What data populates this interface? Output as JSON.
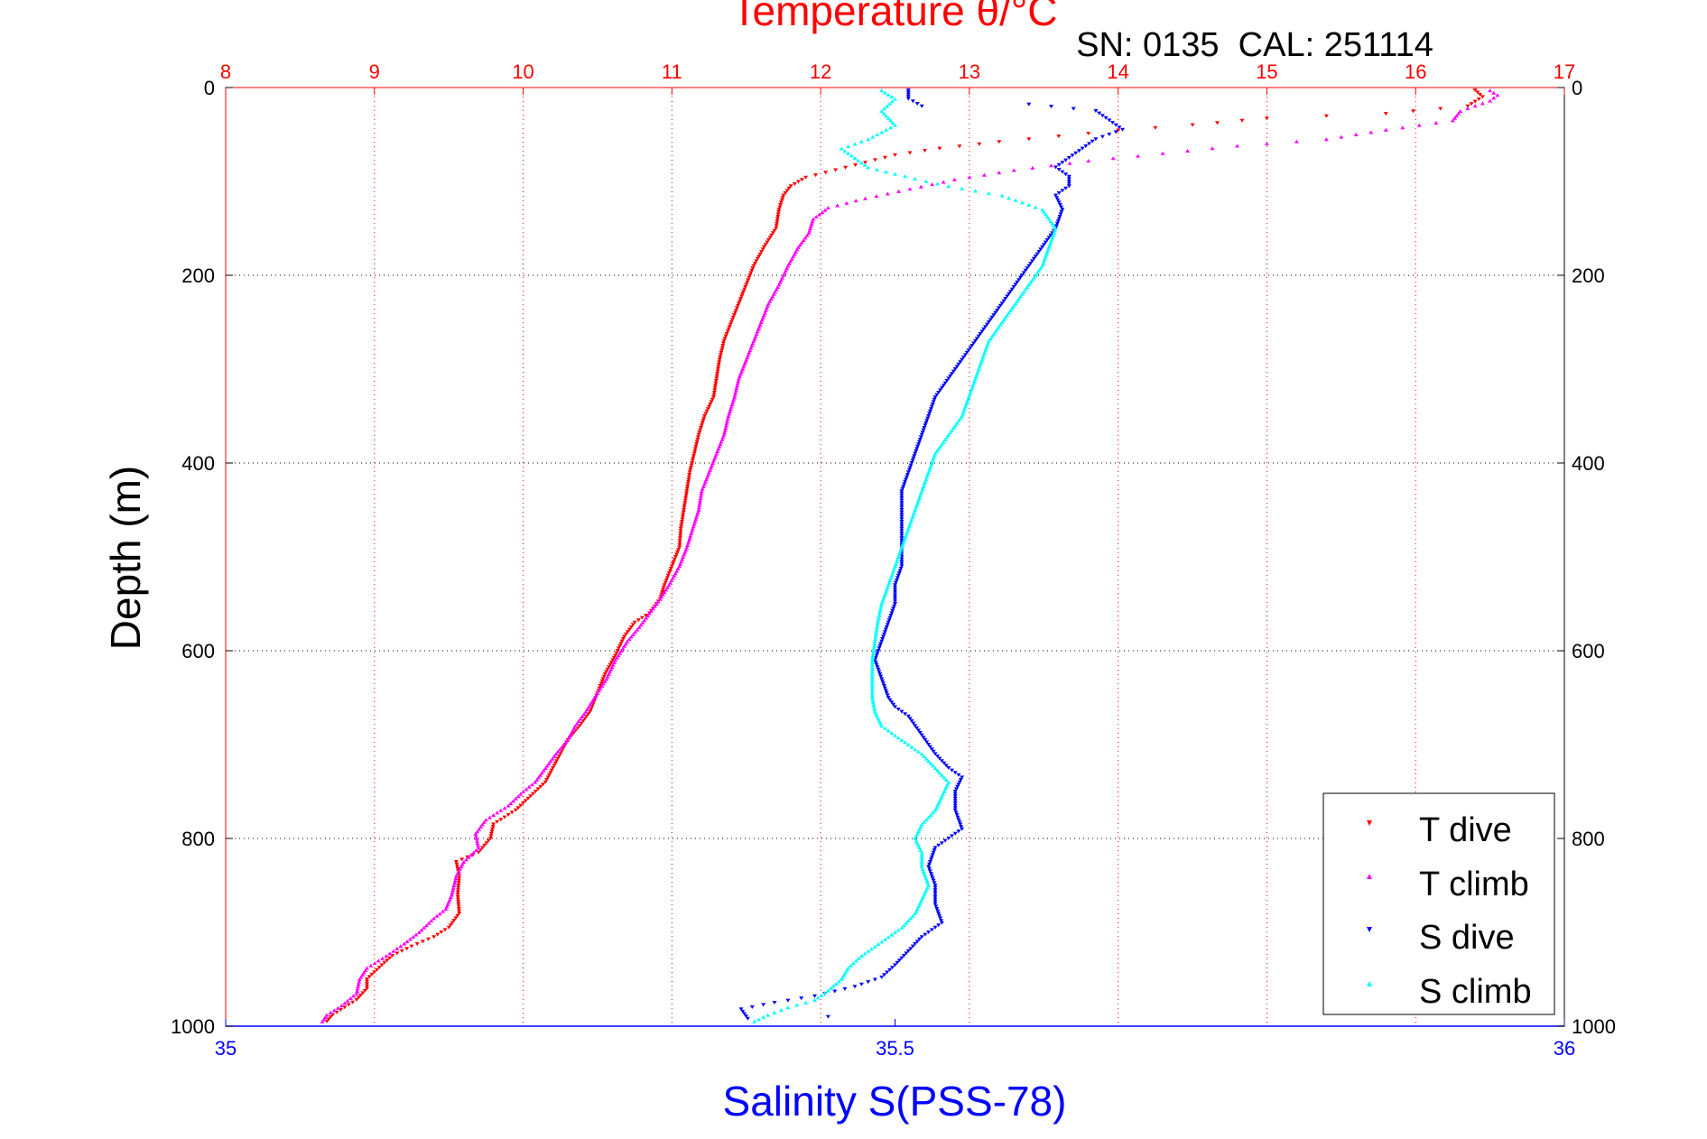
{
  "chart_data": {
    "type": "scatter",
    "top_axis": {
      "label": "Temperature θ/°C",
      "range": [
        8,
        17
      ],
      "ticks": [
        "8",
        "9",
        "10",
        "11",
        "12",
        "13",
        "14",
        "15",
        "16",
        "17"
      ],
      "color": "#ff0000"
    },
    "bottom_axis": {
      "label": "Salinity S(PSS-78)",
      "range": [
        35,
        36
      ],
      "ticks": [
        "35",
        "35.5",
        "36"
      ],
      "color": "#0000ff"
    },
    "y_axis": {
      "label": "Depth (m)",
      "range": [
        0,
        1000
      ],
      "reversed": true,
      "ticks": [
        "0",
        "200",
        "400",
        "600",
        "800",
        "1000"
      ]
    },
    "subtitle": "SN: 0135  CAL: 251114",
    "grid": true,
    "legend": {
      "placement": "bottom-right",
      "entries": [
        "T dive",
        "T climb",
        "S dive",
        "S climb"
      ]
    },
    "series": [
      {
        "name": "T dive",
        "axis": "temperature",
        "color": "#ff0000",
        "marker": "triangle-down",
        "points": [
          [
            16.4,
            3
          ],
          [
            16.45,
            10
          ],
          [
            16.35,
            20
          ],
          [
            15.8,
            28
          ],
          [
            15.0,
            33
          ],
          [
            14.5,
            40
          ],
          [
            14.0,
            46
          ],
          [
            13.6,
            52
          ],
          [
            13.2,
            58
          ],
          [
            12.8,
            65
          ],
          [
            12.5,
            72
          ],
          [
            12.3,
            80
          ],
          [
            12.1,
            88
          ],
          [
            11.9,
            96
          ],
          [
            11.8,
            105
          ],
          [
            11.75,
            115
          ],
          [
            11.72,
            130
          ],
          [
            11.7,
            150
          ],
          [
            11.62,
            170
          ],
          [
            11.55,
            190
          ],
          [
            11.5,
            210
          ],
          [
            11.45,
            230
          ],
          [
            11.4,
            250
          ],
          [
            11.35,
            270
          ],
          [
            11.32,
            290
          ],
          [
            11.3,
            310
          ],
          [
            11.28,
            330
          ],
          [
            11.22,
            350
          ],
          [
            11.18,
            370
          ],
          [
            11.15,
            390
          ],
          [
            11.12,
            410
          ],
          [
            11.1,
            430
          ],
          [
            11.08,
            450
          ],
          [
            11.06,
            470
          ],
          [
            11.05,
            490
          ],
          [
            11.0,
            510
          ],
          [
            10.95,
            530
          ],
          [
            10.92,
            545
          ],
          [
            10.85,
            560
          ],
          [
            10.75,
            570
          ],
          [
            10.68,
            585
          ],
          [
            10.62,
            605
          ],
          [
            10.55,
            625
          ],
          [
            10.5,
            645
          ],
          [
            10.45,
            665
          ],
          [
            10.38,
            680
          ],
          [
            10.3,
            695
          ],
          [
            10.25,
            710
          ],
          [
            10.2,
            725
          ],
          [
            10.15,
            740
          ],
          [
            10.05,
            755
          ],
          [
            9.95,
            770
          ],
          [
            9.8,
            785
          ],
          [
            9.78,
            800
          ],
          [
            9.7,
            815
          ],
          [
            9.55,
            825
          ],
          [
            9.57,
            840
          ],
          [
            9.56,
            860
          ],
          [
            9.57,
            880
          ],
          [
            9.5,
            895
          ],
          [
            9.4,
            905
          ],
          [
            9.25,
            915
          ],
          [
            9.12,
            925
          ],
          [
            9.05,
            935
          ],
          [
            8.95,
            950
          ],
          [
            8.95,
            960
          ],
          [
            8.88,
            972
          ],
          [
            8.8,
            980
          ],
          [
            8.72,
            988
          ],
          [
            8.68,
            995
          ]
        ]
      },
      {
        "name": "T climb",
        "axis": "temperature",
        "color": "#ff00ff",
        "marker": "triangle-up",
        "points": [
          [
            16.5,
            3
          ],
          [
            16.55,
            8
          ],
          [
            16.5,
            14
          ],
          [
            16.3,
            25
          ],
          [
            16.25,
            35
          ],
          [
            15.8,
            45
          ],
          [
            15.4,
            55
          ],
          [
            14.8,
            62
          ],
          [
            14.3,
            70
          ],
          [
            13.8,
            78
          ],
          [
            13.3,
            88
          ],
          [
            12.9,
            98
          ],
          [
            12.6,
            108
          ],
          [
            12.3,
            118
          ],
          [
            12.05,
            128
          ],
          [
            11.95,
            140
          ],
          [
            11.92,
            155
          ],
          [
            11.85,
            170
          ],
          [
            11.78,
            190
          ],
          [
            11.72,
            210
          ],
          [
            11.65,
            230
          ],
          [
            11.6,
            250
          ],
          [
            11.55,
            270
          ],
          [
            11.5,
            290
          ],
          [
            11.45,
            310
          ],
          [
            11.42,
            330
          ],
          [
            11.38,
            350
          ],
          [
            11.35,
            370
          ],
          [
            11.3,
            390
          ],
          [
            11.25,
            410
          ],
          [
            11.2,
            430
          ],
          [
            11.18,
            450
          ],
          [
            11.14,
            470
          ],
          [
            11.1,
            490
          ],
          [
            11.05,
            510
          ],
          [
            10.98,
            530
          ],
          [
            10.92,
            545
          ],
          [
            10.85,
            560
          ],
          [
            10.78,
            575
          ],
          [
            10.7,
            590
          ],
          [
            10.62,
            610
          ],
          [
            10.56,
            630
          ],
          [
            10.48,
            650
          ],
          [
            10.42,
            665
          ],
          [
            10.35,
            680
          ],
          [
            10.3,
            695
          ],
          [
            10.22,
            710
          ],
          [
            10.15,
            725
          ],
          [
            10.08,
            740
          ],
          [
            10.0,
            750
          ],
          [
            9.9,
            765
          ],
          [
            9.75,
            780
          ],
          [
            9.68,
            795
          ],
          [
            9.7,
            810
          ],
          [
            9.6,
            825
          ],
          [
            9.55,
            840
          ],
          [
            9.52,
            860
          ],
          [
            9.48,
            875
          ],
          [
            9.4,
            885
          ],
          [
            9.3,
            900
          ],
          [
            9.2,
            912
          ],
          [
            9.08,
            925
          ],
          [
            8.95,
            938
          ],
          [
            8.9,
            950
          ],
          [
            8.88,
            965
          ],
          [
            8.78,
            978
          ],
          [
            8.68,
            988
          ],
          [
            8.65,
            995
          ]
        ]
      },
      {
        "name": "S dive",
        "axis": "salinity",
        "color": "#0000ff",
        "marker": "triangle-down",
        "points": [
          [
            35.51,
            3
          ],
          [
            35.51,
            12
          ],
          [
            35.52,
            20
          ],
          [
            35.6,
            18
          ],
          [
            35.65,
            25
          ],
          [
            35.66,
            35
          ],
          [
            35.67,
            45
          ],
          [
            35.65,
            55
          ],
          [
            35.64,
            65
          ],
          [
            35.63,
            75
          ],
          [
            35.62,
            85
          ],
          [
            35.63,
            95
          ],
          [
            35.63,
            105
          ],
          [
            35.62,
            115
          ],
          [
            35.625,
            130
          ],
          [
            35.62,
            150
          ],
          [
            35.61,
            170
          ],
          [
            35.6,
            190
          ],
          [
            35.59,
            210
          ],
          [
            35.58,
            230
          ],
          [
            35.57,
            250
          ],
          [
            35.56,
            270
          ],
          [
            35.55,
            290
          ],
          [
            35.54,
            310
          ],
          [
            35.53,
            330
          ],
          [
            35.525,
            350
          ],
          [
            35.52,
            370
          ],
          [
            35.515,
            390
          ],
          [
            35.51,
            410
          ],
          [
            35.505,
            430
          ],
          [
            35.505,
            450
          ],
          [
            35.505,
            470
          ],
          [
            35.505,
            490
          ],
          [
            35.505,
            510
          ],
          [
            35.5,
            530
          ],
          [
            35.5,
            550
          ],
          [
            35.495,
            570
          ],
          [
            35.49,
            590
          ],
          [
            35.485,
            610
          ],
          [
            35.49,
            630
          ],
          [
            35.495,
            650
          ],
          [
            35.5,
            660
          ],
          [
            35.51,
            670
          ],
          [
            35.52,
            690
          ],
          [
            35.53,
            710
          ],
          [
            35.54,
            725
          ],
          [
            35.55,
            735
          ],
          [
            35.545,
            750
          ],
          [
            35.545,
            770
          ],
          [
            35.55,
            790
          ],
          [
            35.54,
            800
          ],
          [
            35.53,
            810
          ],
          [
            35.525,
            830
          ],
          [
            35.53,
            850
          ],
          [
            35.53,
            870
          ],
          [
            35.535,
            890
          ],
          [
            35.52,
            905
          ],
          [
            35.51,
            920
          ],
          [
            35.5,
            935
          ],
          [
            35.49,
            948
          ],
          [
            35.47,
            958
          ],
          [
            35.44,
            968
          ],
          [
            35.41,
            975
          ],
          [
            35.385,
            982
          ],
          [
            35.39,
            992
          ],
          [
            35.45,
            990
          ]
        ]
      },
      {
        "name": "S climb",
        "axis": "salinity",
        "color": "#00ffff",
        "marker": "triangle-up",
        "points": [
          [
            35.49,
            3
          ],
          [
            35.5,
            12
          ],
          [
            35.49,
            25
          ],
          [
            35.5,
            40
          ],
          [
            35.48,
            55
          ],
          [
            35.46,
            65
          ],
          [
            35.47,
            75
          ],
          [
            35.48,
            85
          ],
          [
            35.5,
            92
          ],
          [
            35.515,
            97
          ],
          [
            35.54,
            105
          ],
          [
            35.58,
            115
          ],
          [
            35.61,
            130
          ],
          [
            35.62,
            150
          ],
          [
            35.615,
            170
          ],
          [
            35.61,
            190
          ],
          [
            35.6,
            210
          ],
          [
            35.59,
            230
          ],
          [
            35.58,
            250
          ],
          [
            35.57,
            270
          ],
          [
            35.565,
            290
          ],
          [
            35.56,
            310
          ],
          [
            35.555,
            330
          ],
          [
            35.55,
            350
          ],
          [
            35.54,
            370
          ],
          [
            35.53,
            390
          ],
          [
            35.525,
            410
          ],
          [
            35.52,
            430
          ],
          [
            35.515,
            450
          ],
          [
            35.51,
            470
          ],
          [
            35.505,
            490
          ],
          [
            35.5,
            510
          ],
          [
            35.495,
            530
          ],
          [
            35.49,
            550
          ],
          [
            35.487,
            570
          ],
          [
            35.485,
            590
          ],
          [
            35.483,
            610
          ],
          [
            35.483,
            630
          ],
          [
            35.483,
            650
          ],
          [
            35.485,
            665
          ],
          [
            35.49,
            680
          ],
          [
            35.505,
            695
          ],
          [
            35.52,
            710
          ],
          [
            35.53,
            725
          ],
          [
            35.54,
            740
          ],
          [
            35.535,
            755
          ],
          [
            35.53,
            770
          ],
          [
            35.52,
            785
          ],
          [
            35.515,
            800
          ],
          [
            35.52,
            815
          ],
          [
            35.52,
            830
          ],
          [
            35.525,
            850
          ],
          [
            35.52,
            865
          ],
          [
            35.515,
            880
          ],
          [
            35.505,
            895
          ],
          [
            35.49,
            910
          ],
          [
            35.475,
            925
          ],
          [
            35.465,
            938
          ],
          [
            35.46,
            950
          ],
          [
            35.45,
            962
          ],
          [
            35.44,
            972
          ],
          [
            35.42,
            980
          ],
          [
            35.405,
            988
          ],
          [
            35.395,
            995
          ]
        ]
      }
    ]
  }
}
